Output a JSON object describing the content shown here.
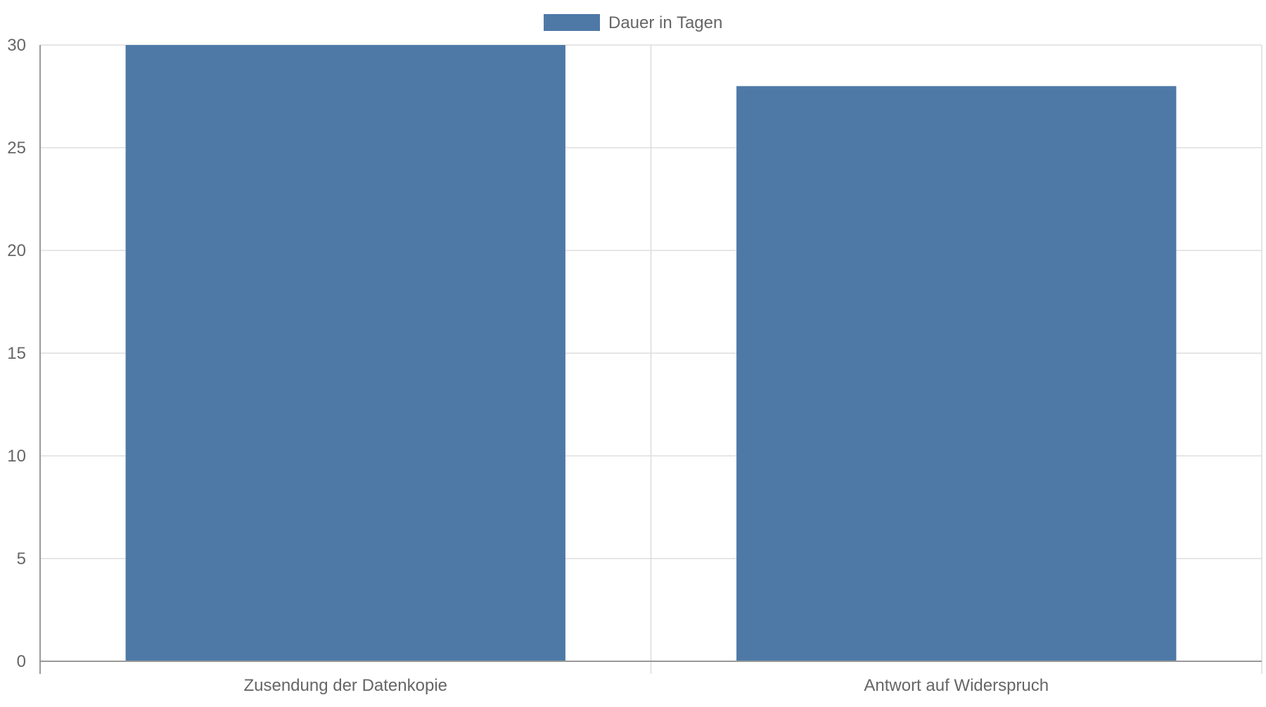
{
  "chart_data": {
    "type": "bar",
    "categories": [
      "Zusendung der Datenkopie",
      "Antwort auf Widerspruch"
    ],
    "series": [
      {
        "name": "Dauer in Tagen",
        "values": [
          30,
          28
        ],
        "color": "#4e79a7"
      }
    ],
    "ylim": [
      0,
      30
    ],
    "yticks": [
      0,
      5,
      10,
      15,
      20,
      25,
      30
    ],
    "grid": true,
    "legend_position": "top"
  }
}
